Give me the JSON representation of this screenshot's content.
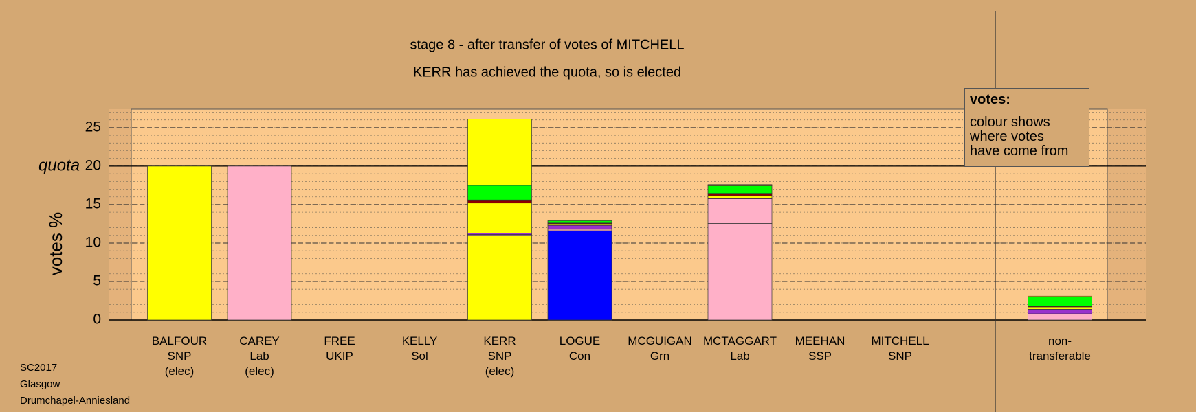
{
  "chart_data": {
    "type": "bar",
    "stacked": true,
    "title": "stage 8 - after transfer of votes of MITCHELL",
    "subtitle": "KERR has achieved the quota, so is elected",
    "y_label": "votes %",
    "categories": [
      "BALFOUR",
      "CAREY",
      "FREE",
      "KELLY",
      "KERR",
      "LOGUE",
      "MCGUIGAN",
      "MCTAGGART",
      "MEEHAN",
      "MITCHELL",
      "non-transferable"
    ],
    "parties": [
      "SNP",
      "Lab",
      "UKIP",
      "Sol",
      "SNP",
      "Con",
      "Grn",
      "Lab",
      "SSP",
      "SNP",
      null
    ],
    "status": [
      "(elec)",
      "(elec)",
      null,
      null,
      "(elec)",
      null,
      null,
      null,
      null,
      null,
      null
    ],
    "ylim": [
      0,
      27.4
    ],
    "yticks": [
      0,
      5,
      10,
      15,
      20,
      25
    ],
    "quota": {
      "value": 20,
      "label": "quota"
    },
    "minor_grid_step": 1,
    "grid": true,
    "series": [
      {
        "colors": [
          "#ffff00",
          "#ffb0c8",
          null,
          null,
          "#ffff00",
          "#0000ff",
          null,
          "#ffb0c8",
          null,
          null,
          null
        ],
        "values": [
          20,
          20,
          null,
          null,
          11.0,
          11.6,
          null,
          12.55,
          null,
          null,
          null
        ]
      },
      {
        "color": "#ffb0c8",
        "values": [
          null,
          null,
          null,
          null,
          0.1,
          0.2,
          null,
          3.2,
          null,
          null,
          0.8
        ]
      },
      {
        "color": "#9932cc",
        "values": [
          null,
          null,
          null,
          null,
          0.2,
          0.5,
          null,
          0.1,
          null,
          null,
          0.6
        ]
      },
      {
        "color": "#ffff00",
        "values": [
          null,
          null,
          null,
          null,
          3.9,
          0.2,
          null,
          0.3,
          null,
          null,
          0.3
        ]
      },
      {
        "color": "#8b0000",
        "values": [
          null,
          null,
          null,
          null,
          0.4,
          0.1,
          null,
          0.3,
          null,
          null,
          0.1
        ]
      },
      {
        "color": "#00ff00",
        "values": [
          null,
          null,
          null,
          null,
          1.9,
          0.3,
          null,
          1.0,
          null,
          null,
          1.2
        ]
      },
      {
        "color": "#ffff00",
        "values": [
          null,
          null,
          null,
          null,
          8.6,
          null,
          null,
          0.15,
          null,
          null,
          0.1
        ]
      }
    ],
    "legend_box": {
      "title": "votes:",
      "lines": [
        "colour shows",
        "where votes",
        "have come from"
      ]
    },
    "footer": [
      "SC2017",
      "Glasgow",
      "Drumchapel-Anniesland"
    ]
  }
}
